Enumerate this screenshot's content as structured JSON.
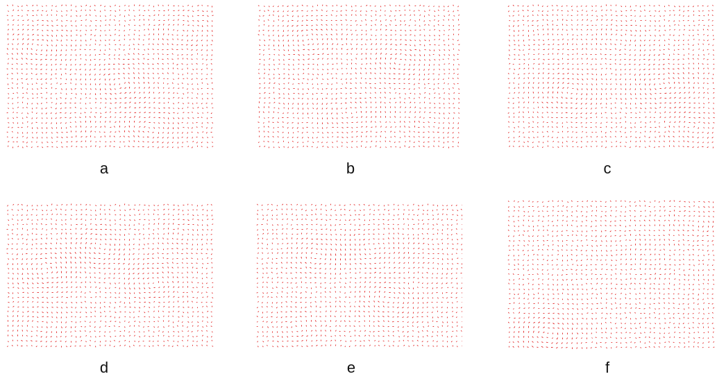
{
  "figure": {
    "arrow_color": "#dd0000",
    "panels": [
      {
        "id": "a",
        "label": "a",
        "seed": 11,
        "vortices": [
          [
            0.15,
            0.3,
            1.0
          ],
          [
            0.55,
            0.55,
            -1.2
          ],
          [
            0.85,
            0.2,
            0.8
          ],
          [
            0.3,
            0.85,
            -0.7
          ],
          [
            0.7,
            0.85,
            0.9
          ]
        ]
      },
      {
        "id": "b",
        "label": "b",
        "seed": 23,
        "vortices": [
          [
            0.25,
            0.25,
            -1.0
          ],
          [
            0.7,
            0.4,
            1.1
          ],
          [
            0.45,
            0.75,
            -0.8
          ],
          [
            0.85,
            0.8,
            0.7
          ],
          [
            0.1,
            0.7,
            0.6
          ]
        ]
      },
      {
        "id": "c",
        "label": "c",
        "seed": 37,
        "vortices": [
          [
            0.3,
            0.6,
            1.2
          ],
          [
            0.75,
            0.55,
            -1.1
          ],
          [
            0.55,
            0.25,
            0.7
          ],
          [
            0.15,
            0.2,
            -0.6
          ],
          [
            0.9,
            0.85,
            0.8
          ]
        ]
      },
      {
        "id": "d",
        "label": "d",
        "seed": 41,
        "vortices": [
          [
            0.2,
            0.45,
            -1.1
          ],
          [
            0.45,
            0.3,
            1.0
          ],
          [
            0.7,
            0.55,
            -0.9
          ],
          [
            0.15,
            0.85,
            0.8
          ],
          [
            0.85,
            0.2,
            0.6
          ]
        ]
      },
      {
        "id": "e",
        "label": "e",
        "seed": 53,
        "vortices": [
          [
            0.3,
            0.35,
            1.0
          ],
          [
            0.55,
            0.3,
            -0.8
          ],
          [
            0.65,
            0.65,
            1.1
          ],
          [
            0.2,
            0.85,
            -0.7
          ],
          [
            0.85,
            0.45,
            0.6
          ]
        ]
      },
      {
        "id": "f",
        "label": "f",
        "seed": 67,
        "vortices": [
          [
            0.2,
            0.9,
            1.3
          ],
          [
            0.55,
            0.3,
            -0.6
          ],
          [
            0.8,
            0.55,
            0.5
          ],
          [
            0.35,
            0.55,
            -0.4
          ],
          [
            0.9,
            0.15,
            0.7
          ]
        ]
      }
    ]
  }
}
